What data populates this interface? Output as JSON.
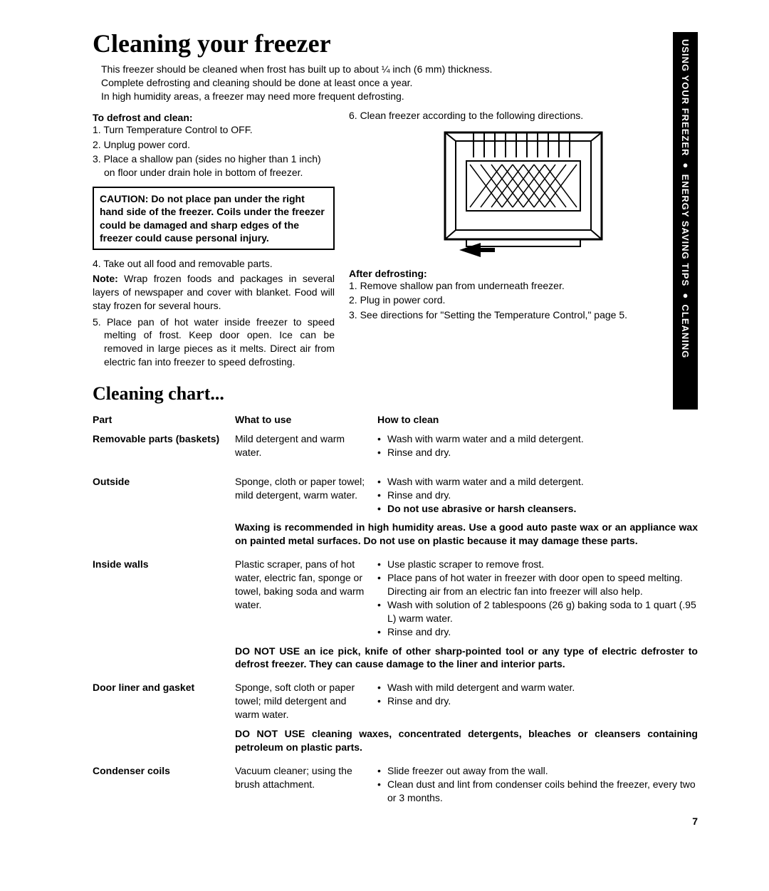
{
  "sideTab": "USING YOUR FREEZER ● ENERGY SAVING TIPS ● CLEANING",
  "title": "Cleaning your freezer",
  "intro": [
    "This freezer should be cleaned when frost has built up to about ¼ inch (6 mm) thickness.",
    "Complete defrosting and cleaning should be done at least once a year.",
    "In high humidity areas, a freezer may need more frequent defrosting."
  ],
  "defrostHead": "To defrost and clean:",
  "defrostSteps": [
    "1. Turn Temperature Control to OFF.",
    "2. Unplug power cord.",
    "3. Place a shallow pan (sides no higher than 1 inch) on floor under drain hole in bottom of freezer."
  ],
  "caution": "CAUTION: Do not place pan under the right hand side of the freezer. Coils under the freezer could be damaged and sharp edges of the freezer could cause personal injury.",
  "step4": "4. Take out all food and removable parts.",
  "noteLabel": "Note:",
  "noteText": " Wrap frozen foods and packages in several layers of newspaper and cover with blanket. Food will stay frozen for several hours.",
  "step5": "5. Place pan of hot water inside freezer to speed melting of frost. Keep door open. Ice can be removed in large pieces as it melts. Direct air from electric fan into freezer to speed defrosting.",
  "step6": "6. Clean freezer according to the following directions.",
  "afterHead": "After defrosting:",
  "afterSteps": [
    "1. Remove shallow pan from underneath freezer.",
    "2. Plug in power cord.",
    "3. See directions for \"Setting the Temperature Control,\" page 5."
  ],
  "chartTitle": "Cleaning chart...",
  "chartHeaders": {
    "part": "Part",
    "use": "What to use",
    "how": "How to clean"
  },
  "rows": [
    {
      "part": "Removable parts (baskets)",
      "use": "Mild detergent and warm water.",
      "how": [
        "Wash with warm water and a mild detergent.",
        "Rinse and dry."
      ]
    },
    {
      "part": "Outside",
      "use": "Sponge, cloth or paper towel; mild detergent, warm water.",
      "how": [
        "Wash with warm water and a mild detergent.",
        "Rinse and dry."
      ],
      "howBold": "Do not use abrasive or harsh cleansers.",
      "note": "Waxing is recommended in high humidity areas. Use a good auto paste wax or an appliance wax on painted metal surfaces. Do not use on plastic because it may damage these parts."
    },
    {
      "part": "Inside walls",
      "use": "Plastic scraper, pans of hot water, electric fan, sponge or towel, baking soda and warm water.",
      "how": [
        "Use plastic scraper to remove frost.",
        "Place pans of hot water in freezer with door open to speed melting. Directing air from an electric fan into freezer will also help.",
        "Wash with solution of 2 tablespoons (26 g) baking soda to 1 quart (.95 L) warm water.",
        "Rinse and dry."
      ],
      "note": "DO NOT USE an ice pick, knife of other sharp-pointed tool or any type of electric defroster to defrost freezer. They can cause damage to the liner and interior parts."
    },
    {
      "part": "Door liner and gasket",
      "use": "Sponge, soft cloth or paper towel; mild detergent and warm water.",
      "how": [
        "Wash with mild detergent and warm water.",
        "Rinse and dry."
      ],
      "note": "DO NOT USE cleaning waxes, concentrated detergents, bleaches or cleansers containing petroleum on plastic parts."
    },
    {
      "part": "Condenser coils",
      "use": "Vacuum cleaner; using the brush attachment.",
      "how": [
        "Slide freezer out away from the wall.",
        "Clean dust and lint from condenser coils behind the freezer, every two or 3 months."
      ]
    }
  ],
  "pageNum": "7"
}
